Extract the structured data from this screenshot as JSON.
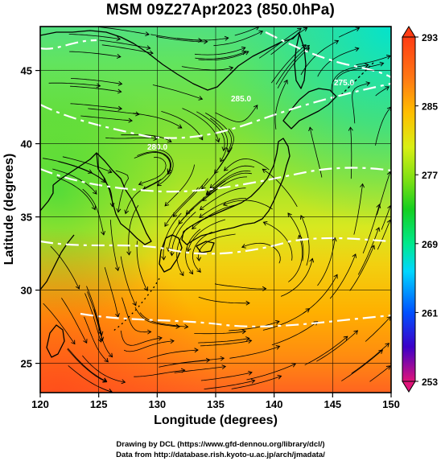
{
  "title": "MSM 09Z27Apr2023 (850.0hPa)",
  "x_axis": {
    "label": "Longitude (degrees)",
    "ticks": [
      "120",
      "125",
      "130",
      "135",
      "140",
      "145",
      "150"
    ]
  },
  "y_axis": {
    "label": "Latitude  (degrees)",
    "ticks": [
      "25",
      "30",
      "35",
      "40",
      "45"
    ]
  },
  "colorbar": {
    "ticks": [
      "293",
      "285",
      "277",
      "269",
      "261",
      "253"
    ]
  },
  "contour_labels": [
    "285.0",
    "280.0",
    "275.0"
  ],
  "footer": {
    "line1": "Drawing by DCL (https://www.gfd-dennou.org/library/dcl/)",
    "line2": "Data from http://database.rish.kyoto-u.ac.jp/arch/jmadata/"
  },
  "colors": {
    "frame": "#000000",
    "contour": "#ffffff",
    "scale": [
      "#e0147a",
      "#3c00c8",
      "#0050ff",
      "#00d7ff",
      "#00e98c",
      "#15cf20",
      "#78df14",
      "#d9ef14",
      "#ffbe00",
      "#ff7814",
      "#ff3c14"
    ]
  },
  "chart_data": {
    "type": "heatmap",
    "variable": "temperature at 850 hPa (K)",
    "xlim": [
      120,
      150
    ],
    "ylim": [
      23,
      48
    ],
    "clim": [
      253,
      293
    ],
    "temperature_field_approx": [
      {
        "lat": 47,
        "values": [
          276,
          275,
          274,
          274,
          273,
          271,
          270
        ]
      },
      {
        "lat": 42,
        "values": [
          278,
          278,
          278,
          277,
          276,
          275,
          274
        ]
      },
      {
        "lat": 37,
        "values": [
          280,
          279,
          279,
          279,
          278,
          278,
          277
        ]
      },
      {
        "lat": 32,
        "values": [
          283,
          283,
          282,
          281,
          281,
          281,
          282
        ]
      },
      {
        "lat": 27,
        "values": [
          286,
          285,
          285,
          285,
          285,
          285,
          286
        ]
      },
      {
        "lat": 24,
        "values": [
          289,
          288,
          287,
          287,
          287,
          287,
          288
        ]
      }
    ],
    "field_longitudes": [
      120,
      125,
      130,
      135,
      140,
      145,
      150
    ]
  }
}
